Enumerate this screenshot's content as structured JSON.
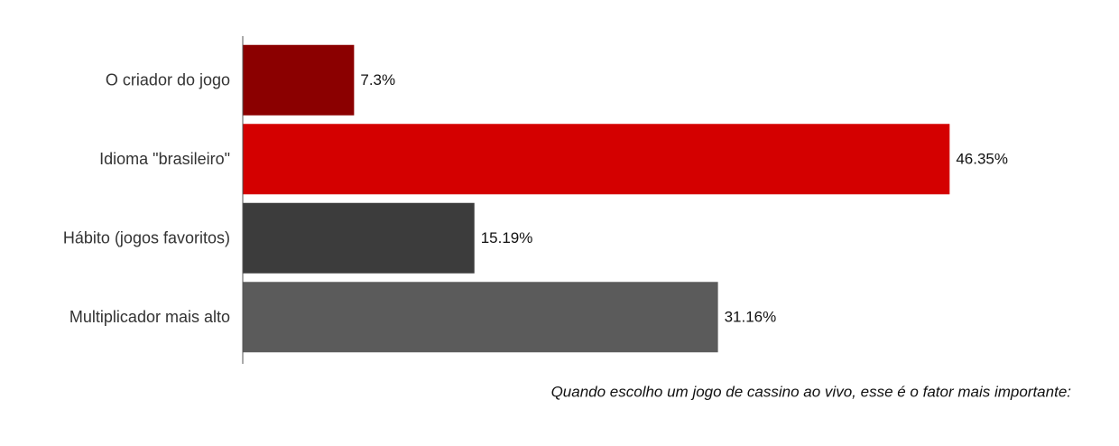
{
  "chart_data": {
    "type": "hbar",
    "caption": "Quando escolho um jogo de cassino ao vivo, esse é o fator mais importante:",
    "categories": [
      "O criador do jogo",
      "Idioma \"brasileiro\"",
      "Hábito (jogos favoritos)",
      "Multiplicador mais alto"
    ],
    "values": [
      7.3,
      46.35,
      15.19,
      31.16
    ],
    "value_labels": [
      "7.3%",
      "46.35%",
      "15.19%",
      "31.16%"
    ],
    "colors": [
      "#8b0000",
      "#d40000",
      "#3c3c3c",
      "#5b5b5b"
    ],
    "xlim": [
      0,
      50
    ]
  }
}
